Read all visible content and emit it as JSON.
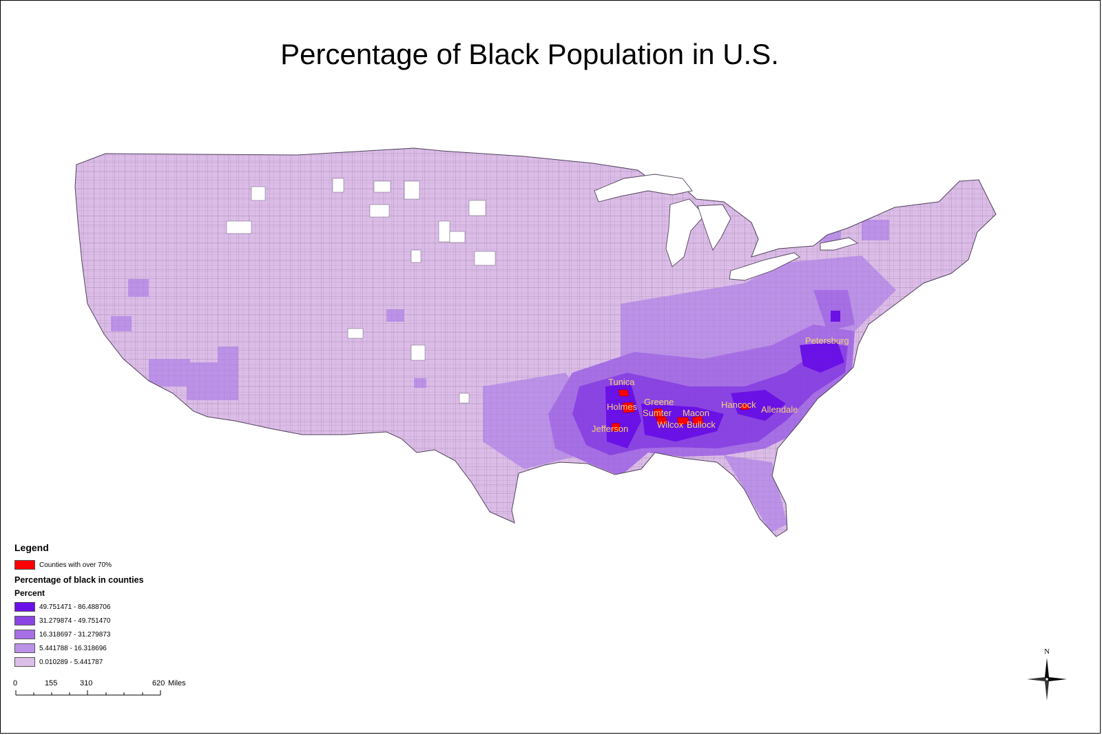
{
  "title": "Percentage of Black Population in U.S.",
  "legend": {
    "heading": "Legend",
    "highlight": {
      "label": "Counties with over 70%",
      "color": "#ff0000"
    },
    "layer_title": "Percentage of black in counties",
    "field": "Percent",
    "classes": [
      {
        "label": "49.751471 - 86.488706",
        "color": "#6a10e8"
      },
      {
        "label": "31.279874 - 49.751470",
        "color": "#8b44e4"
      },
      {
        "label": "16.318697 - 31.279873",
        "color": "#a76fe6"
      },
      {
        "label": "5.441788 - 16.318696",
        "color": "#bc92e8"
      },
      {
        "label": "0.010289 - 5.441787",
        "color": "#dcbde8"
      }
    ]
  },
  "county_labels": [
    "Tunica",
    "Holmes",
    "Greene",
    "Sumter",
    "Macon",
    "Jefferson",
    "Wilcox",
    "Bullock",
    "Hancock",
    "Allendale",
    "Petersburg"
  ],
  "scale_bar": {
    "ticks": [
      "0",
      "155",
      "310",
      "620"
    ],
    "unit": "Miles"
  },
  "north_label": "N"
}
